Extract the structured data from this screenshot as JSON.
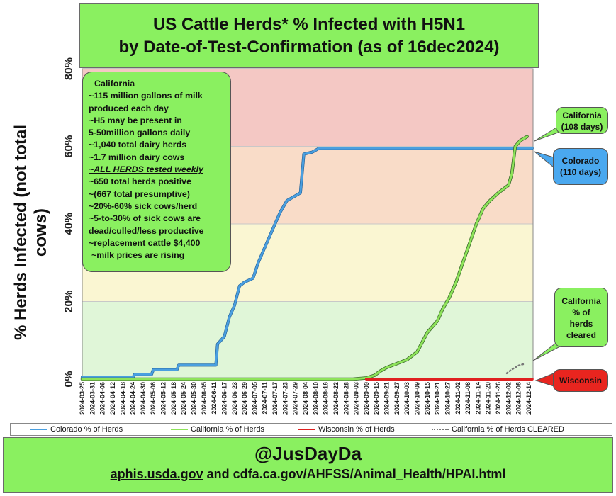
{
  "title": {
    "line1": "US Cattle Herds* % Infected with H5N1",
    "line2": "by Date-of-Test-Confirmation (as of 16dec2024)"
  },
  "info_box": {
    "lines": [
      "California",
      "~115 million gallons of milk",
      "produced each day",
      "~H5 may be present in",
      "5-50million gallons daily",
      "~1,040 total dairy herds",
      "~1.7 million dairy cows",
      "~ALL HERDS tested weekly",
      "~650 total herds positive",
      "~(667 total presumptive)",
      "~20%-60% sick cows/herd",
      "~5-to-30% of sick cows are",
      "dead/culled/less productive",
      "~replacement cattle $4,400",
      "~milk prices are rising"
    ]
  },
  "callouts": {
    "california": [
      "California",
      "(108 days)"
    ],
    "colorado": [
      "Colorado",
      "(110 days)"
    ],
    "california_cleared": [
      "California",
      "% of",
      "herds",
      "cleared"
    ],
    "wisconsin": [
      "Wisconsin"
    ]
  },
  "footer": {
    "handle": "@JusDayDa",
    "source_link": "aphis.usda.gov",
    "source_rest": " and cdfa.ca.gov/AHFSS/Animal_Health/HPAI.html"
  },
  "colors": {
    "colorado": "#4a9fe0",
    "california": "#8ee35a",
    "wisconsin": "#e02020",
    "cleared": "#777777",
    "band_red": "#f4c8c4",
    "band_salmon": "#f9dcc8",
    "band_yellow": "#faf6d2",
    "band_green": "#e0f6d8",
    "panel_green": "#8af060"
  },
  "chart_data": {
    "type": "line",
    "ylabel": "% Herds Infected (not total cows)",
    "ylim": [
      0,
      80
    ],
    "yticks": [
      "0%",
      "20%",
      "40%",
      "60%",
      "80%"
    ],
    "bands": [
      {
        "from": 0,
        "to": 20,
        "color": "green"
      },
      {
        "from": 20,
        "to": 40,
        "color": "yellow"
      },
      {
        "from": 40,
        "to": 60,
        "color": "salmon"
      },
      {
        "from": 60,
        "to": 80,
        "color": "red"
      }
    ],
    "x_categories": [
      "2024-03-25",
      "2024-03-31",
      "2024-04-06",
      "2024-04-12",
      "2024-04-18",
      "2024-04-24",
      "2024-04-30",
      "2024-05-06",
      "2024-05-12",
      "2024-05-18",
      "2024-05-24",
      "2024-05-30",
      "2024-06-05",
      "2024-06-11",
      "2024-06-17",
      "2024-06-23",
      "2024-06-29",
      "2024-07-05",
      "2024-07-11",
      "2024-07-17",
      "2024-07-23",
      "2024-07-29",
      "2024-08-04",
      "2024-08-10",
      "2024-08-16",
      "2024-08-22",
      "2024-08-28",
      "2024-09-03",
      "2024-09-09",
      "2024-09-15",
      "2024-09-21",
      "2024-09-27",
      "2024-10-03",
      "2024-10-09",
      "2024-10-15",
      "2024-10-21",
      "2024-10-27",
      "2024-11-02",
      "2024-11-08",
      "2024-11-14",
      "2024-11-20",
      "2024-11-26",
      "2024-12-02",
      "2024-12-08",
      "2024-12-14"
    ],
    "series": [
      {
        "name": "Colorado % of Herds",
        "color": "#4a9fe0",
        "points": [
          [
            "2024-03-25",
            0.5
          ],
          [
            "2024-04-24",
            0.5
          ],
          [
            "2024-04-25",
            1.2
          ],
          [
            "2024-05-05",
            1.2
          ],
          [
            "2024-05-06",
            2.4
          ],
          [
            "2024-05-20",
            2.4
          ],
          [
            "2024-05-21",
            3.6
          ],
          [
            "2024-06-12",
            3.6
          ],
          [
            "2024-06-13",
            9
          ],
          [
            "2024-06-17",
            11
          ],
          [
            "2024-06-20",
            16
          ],
          [
            "2024-06-23",
            19
          ],
          [
            "2024-06-26",
            24
          ],
          [
            "2024-06-29",
            25
          ],
          [
            "2024-07-04",
            26
          ],
          [
            "2024-07-07",
            30
          ],
          [
            "2024-07-10",
            33
          ],
          [
            "2024-07-13",
            36
          ],
          [
            "2024-07-17",
            40
          ],
          [
            "2024-07-20",
            43
          ],
          [
            "2024-07-24",
            46
          ],
          [
            "2024-07-28",
            47
          ],
          [
            "2024-08-01",
            48
          ],
          [
            "2024-08-03",
            58
          ],
          [
            "2024-08-08",
            58.5
          ],
          [
            "2024-08-12",
            59.5
          ],
          [
            "2024-12-16",
            59.5
          ]
        ]
      },
      {
        "name": "California % of Herds",
        "color": "#8ee35a",
        "points": [
          [
            "2024-03-25",
            0
          ],
          [
            "2024-09-01",
            0
          ],
          [
            "2024-09-09",
            0.3
          ],
          [
            "2024-09-14",
            1
          ],
          [
            "2024-09-17",
            2
          ],
          [
            "2024-09-21",
            3
          ],
          [
            "2024-09-27",
            4
          ],
          [
            "2024-10-03",
            5
          ],
          [
            "2024-10-09",
            7
          ],
          [
            "2024-10-15",
            12
          ],
          [
            "2024-10-21",
            15
          ],
          [
            "2024-10-24",
            18
          ],
          [
            "2024-10-28",
            21
          ],
          [
            "2024-11-01",
            25
          ],
          [
            "2024-11-05",
            30
          ],
          [
            "2024-11-09",
            35
          ],
          [
            "2024-11-13",
            40
          ],
          [
            "2024-11-17",
            44
          ],
          [
            "2024-11-21",
            46
          ],
          [
            "2024-11-26",
            48
          ],
          [
            "2024-12-02",
            50
          ],
          [
            "2024-12-04",
            53
          ],
          [
            "2024-12-06",
            60
          ],
          [
            "2024-12-09",
            61.5
          ],
          [
            "2024-12-13",
            62.5
          ]
        ]
      },
      {
        "name": "Wisconsin % of Herds",
        "color": "#e02020",
        "points": [
          [
            "2024-09-09",
            0
          ],
          [
            "2024-12-16",
            0
          ]
        ]
      },
      {
        "name": "California % of Herds CLEARED",
        "color": "#777777",
        "points": [
          [
            "2024-12-01",
            1.5
          ],
          [
            "2024-12-04",
            2.5
          ],
          [
            "2024-12-08",
            3.5
          ],
          [
            "2024-12-12",
            4
          ]
        ]
      }
    ]
  }
}
